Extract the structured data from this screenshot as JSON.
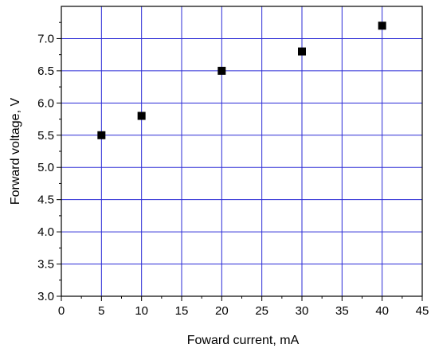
{
  "chart_data": {
    "type": "scatter",
    "title": "",
    "xlabel": "Foward current, mA",
    "ylabel": "Forward voltage, V",
    "xlim": [
      0,
      45
    ],
    "ylim": [
      3.0,
      7.5
    ],
    "xticks": [
      0,
      5,
      10,
      15,
      20,
      25,
      30,
      35,
      40,
      45
    ],
    "xtick_labels": [
      "0",
      "5",
      "10",
      "15",
      "20",
      "25",
      "30",
      "35",
      "40",
      "45"
    ],
    "yticks": [
      3.0,
      3.5,
      4.0,
      4.5,
      5.0,
      5.5,
      6.0,
      6.5,
      7.0
    ],
    "ytick_labels": [
      "3.0",
      "3.5",
      "4.0",
      "4.5",
      "5.0",
      "5.5",
      "6.0",
      "6.5",
      "7.0"
    ],
    "grid": true,
    "legend": "none",
    "series": [
      {
        "marker": "square",
        "color": "#000000",
        "x": [
          5,
          10,
          20,
          30,
          40
        ],
        "y": [
          5.5,
          5.8,
          6.5,
          6.8,
          7.2
        ]
      }
    ],
    "colors": {
      "grid": "#2b2bd6",
      "axes": "#000000",
      "background": "#ffffff"
    }
  }
}
